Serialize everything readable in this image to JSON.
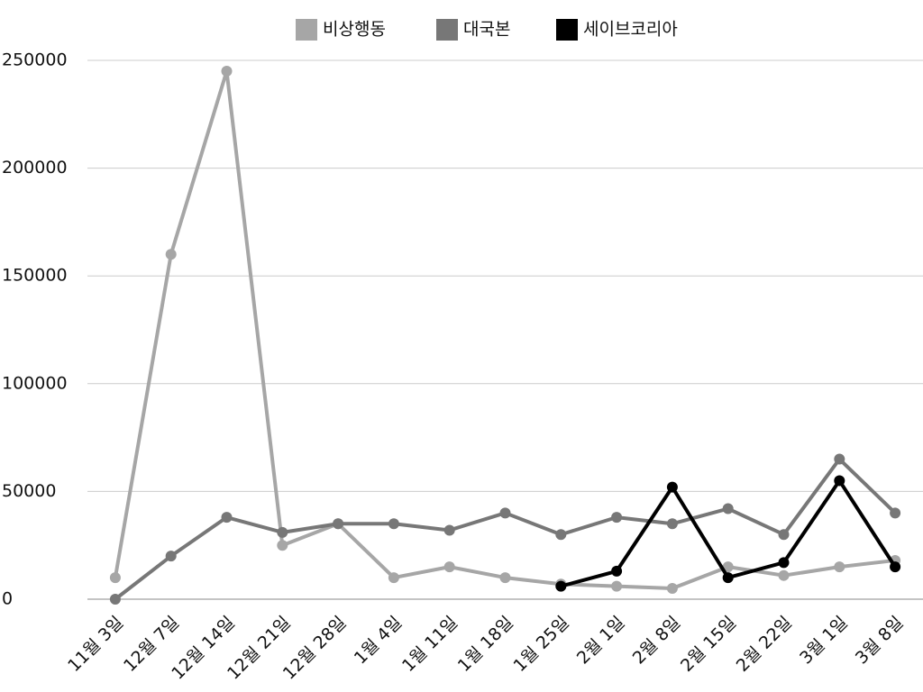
{
  "chart_data": {
    "type": "line",
    "categories": [
      "11월 3일",
      "12월 7일",
      "12월 14일",
      "12월 21일",
      "12월 28일",
      "1월 4일",
      "1월 11일",
      "1월 18일",
      "1월 25일",
      "2월 1일",
      "2월 8일",
      "2월 15일",
      "2월 22일",
      "3월 1일",
      "3월 8일"
    ],
    "series": [
      {
        "name": "비상행동",
        "color": "#a6a6a6",
        "values": [
          10000,
          160000,
          245000,
          25000,
          35000,
          10000,
          15000,
          10000,
          7000,
          6000,
          5000,
          15000,
          11000,
          15000,
          18000
        ]
      },
      {
        "name": "대국본",
        "color": "#777777",
        "values": [
          0,
          20000,
          38000,
          31000,
          35000,
          35000,
          32000,
          40000,
          30000,
          38000,
          35000,
          42000,
          30000,
          65000,
          40000
        ]
      },
      {
        "name": "세이브코리아",
        "color": "#000000",
        "values": [
          null,
          null,
          null,
          null,
          null,
          null,
          null,
          null,
          6000,
          13000,
          52000,
          10000,
          17000,
          55000,
          15000
        ]
      }
    ],
    "ylim": [
      0,
      250000
    ],
    "yticks": [
      0,
      50000,
      100000,
      150000,
      200000,
      250000
    ],
    "grid": true,
    "legend": "top"
  }
}
